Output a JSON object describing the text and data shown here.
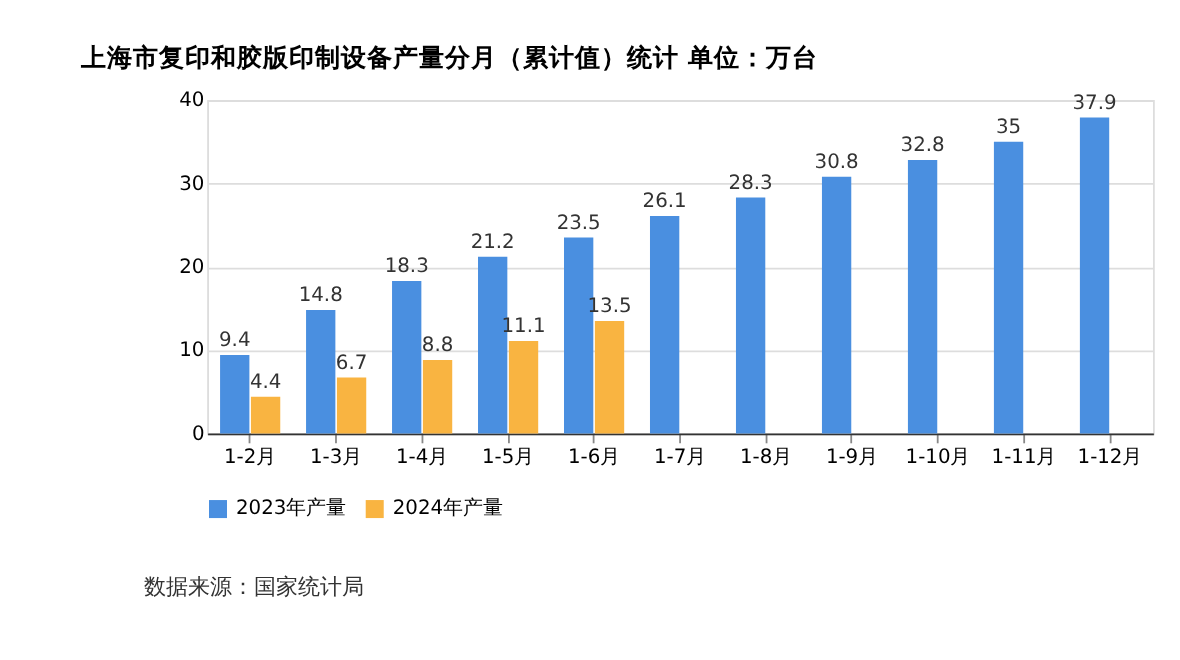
{
  "chart_data": {
    "type": "bar",
    "title": "上海市复印和胶版印制设备产量分月（累计值）统计  单位：万台",
    "categories": [
      "1-2月",
      "1-3月",
      "1-4月",
      "1-5月",
      "1-6月",
      "1-7月",
      "1-8月",
      "1-9月",
      "1-10月",
      "1-11月",
      "1-12月"
    ],
    "series": [
      {
        "name": "2023年产量",
        "color": "#4a8fe0",
        "values": [
          9.4,
          14.8,
          18.3,
          21.2,
          23.5,
          26.1,
          28.3,
          30.8,
          32.8,
          35,
          37.9
        ]
      },
      {
        "name": "2024年产量",
        "color": "#f9b441",
        "values": [
          4.4,
          6.7,
          8.8,
          11.1,
          13.5,
          null,
          null,
          null,
          null,
          null,
          null
        ]
      }
    ],
    "ylim": [
      0,
      40
    ],
    "yticks": [
      0,
      10,
      20,
      30,
      40
    ],
    "grid": "y",
    "legend": "bottom",
    "data_labels": true,
    "annotations": [
      "数据来源：国家统计局"
    ]
  }
}
